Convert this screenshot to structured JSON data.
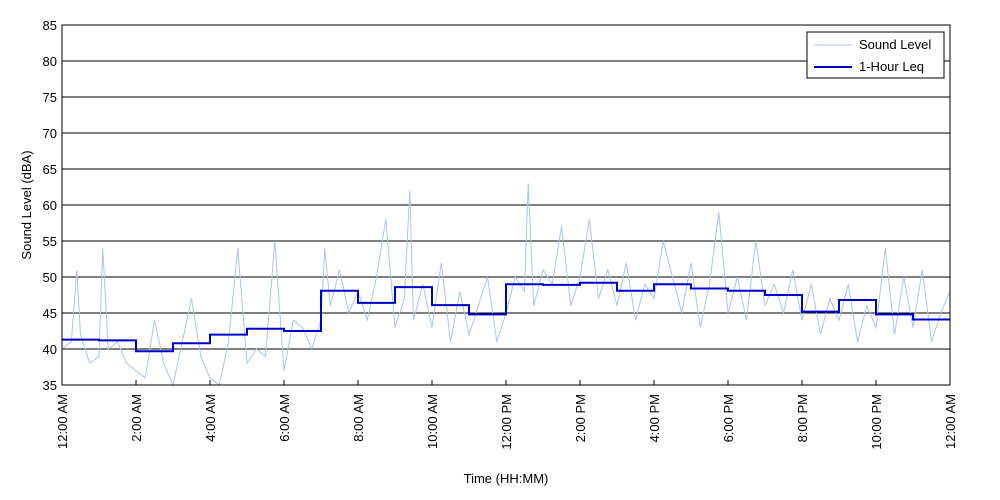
{
  "chart_data": {
    "type": "line",
    "title": "",
    "xlabel": "Time (HH:MM)",
    "ylabel": "Sound Level (dBA)",
    "ylim": [
      35,
      85
    ],
    "yticks": [
      35,
      40,
      45,
      50,
      55,
      60,
      65,
      70,
      75,
      80,
      85
    ],
    "xlim": [
      0,
      24
    ],
    "xticks": [
      0,
      2,
      4,
      6,
      8,
      10,
      12,
      14,
      16,
      18,
      20,
      22,
      24
    ],
    "xtick_labels": [
      "12:00 AM",
      "2:00 AM",
      "4:00 AM",
      "6:00 AM",
      "8:00 AM",
      "10:00 AM",
      "12:00 PM",
      "2:00 PM",
      "4:00 PM",
      "6:00 PM",
      "8:00 PM",
      "10:00 PM",
      "12:00 AM"
    ],
    "grid": "horizontal",
    "legend_position": "top-right",
    "series": [
      {
        "name": "Sound Level",
        "color": "#a8c4f0",
        "style": "thin noisy line",
        "x": [
          0.0,
          0.25,
          0.4,
          0.5,
          0.75,
          1.0,
          1.1,
          1.25,
          1.5,
          1.75,
          2.0,
          2.25,
          2.5,
          2.75,
          3.0,
          3.25,
          3.5,
          3.75,
          4.0,
          4.25,
          4.5,
          4.75,
          5.0,
          5.25,
          5.5,
          5.75,
          6.0,
          6.25,
          6.5,
          6.75,
          7.0,
          7.1,
          7.25,
          7.5,
          7.75,
          8.0,
          8.25,
          8.5,
          8.75,
          9.0,
          9.25,
          9.4,
          9.5,
          9.75,
          10.0,
          10.25,
          10.5,
          10.75,
          11.0,
          11.25,
          11.5,
          11.75,
          12.0,
          12.25,
          12.5,
          12.6,
          12.75,
          13.0,
          13.25,
          13.5,
          13.75,
          14.0,
          14.25,
          14.5,
          14.75,
          15.0,
          15.25,
          15.5,
          15.75,
          16.0,
          16.25,
          16.5,
          16.75,
          17.0,
          17.25,
          17.5,
          17.75,
          18.0,
          18.25,
          18.5,
          18.75,
          19.0,
          19.25,
          19.5,
          19.75,
          20.0,
          20.25,
          20.5,
          20.75,
          21.0,
          21.25,
          21.5,
          21.75,
          22.0,
          22.25,
          22.5,
          22.75,
          23.0,
          23.25,
          23.5,
          23.75,
          24.0
        ],
        "y": [
          40,
          41,
          51,
          42,
          38,
          39,
          54,
          40,
          41,
          38,
          37,
          36,
          44,
          38,
          35,
          41,
          47,
          39,
          36,
          35,
          41,
          54,
          38,
          40,
          39,
          55,
          37,
          44,
          43,
          40,
          44,
          54,
          46,
          51,
          45,
          48,
          44,
          50,
          58,
          43,
          47,
          62,
          44,
          49,
          43,
          52,
          41,
          48,
          42,
          46,
          50,
          41,
          45,
          50,
          48,
          63,
          46,
          51,
          49,
          57,
          46,
          50,
          58,
          47,
          51,
          46,
          52,
          44,
          49,
          47,
          55,
          50,
          45,
          52,
          43,
          49,
          59,
          45,
          50,
          44,
          55,
          46,
          49,
          45,
          51,
          44,
          49,
          42,
          47,
          44,
          49,
          41,
          46,
          43,
          54,
          42,
          50,
          43,
          51,
          41,
          45,
          48
        ]
      },
      {
        "name": "1-Hour Leq",
        "color": "#0000cc",
        "style": "step",
        "x": [
          0,
          1,
          2,
          3,
          4,
          5,
          6,
          7,
          8,
          9,
          10,
          11,
          12,
          13,
          14,
          15,
          16,
          17,
          18,
          19,
          20,
          21,
          22,
          23,
          24
        ],
        "y": [
          41.3,
          41.2,
          39.7,
          40.8,
          42.0,
          42.8,
          42.5,
          48.1,
          46.4,
          48.6,
          46.1,
          44.8,
          49.0,
          48.9,
          49.2,
          48.1,
          49.0,
          48.4,
          48.1,
          47.5,
          45.2,
          46.8,
          44.8,
          44.1,
          44.1
        ]
      }
    ]
  }
}
